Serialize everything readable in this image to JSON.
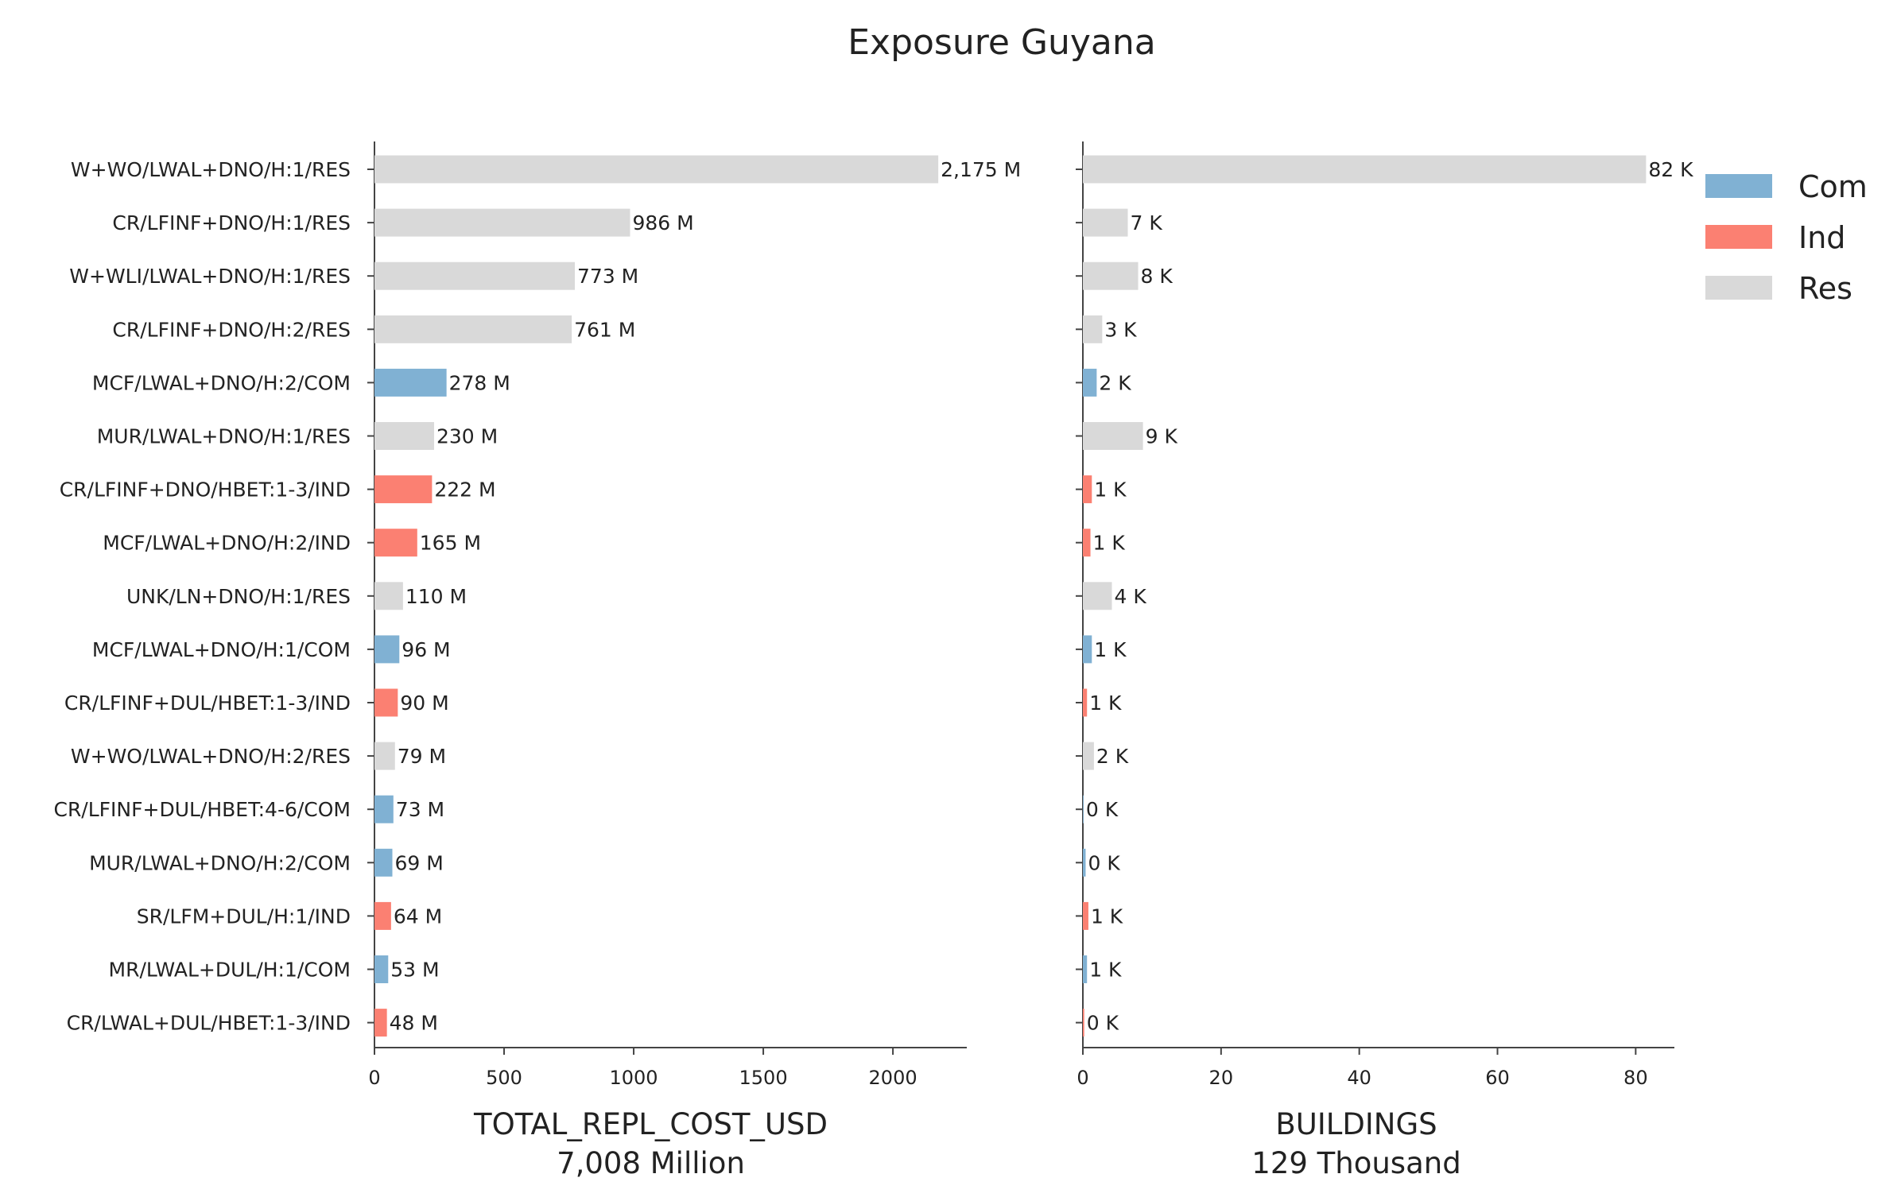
{
  "title": "Exposure Guyana",
  "chart_data": {
    "type": "bar",
    "orientation": "horizontal",
    "title": "Exposure Guyana",
    "categories": [
      "W+WO/LWAL+DNO/H:1/RES",
      "CR/LFINF+DNO/H:1/RES",
      "W+WLI/LWAL+DNO/H:1/RES",
      "CR/LFINF+DNO/H:2/RES",
      "MCF/LWAL+DNO/H:2/COM",
      "MUR/LWAL+DNO/H:1/RES",
      "CR/LFINF+DNO/HBET:1-3/IND",
      "MCF/LWAL+DNO/H:2/IND",
      "UNK/LN+DNO/H:1/RES",
      "MCF/LWAL+DNO/H:1/COM",
      "CR/LFINF+DUL/HBET:1-3/IND",
      "W+WO/LWAL+DNO/H:2/RES",
      "CR/LFINF+DUL/HBET:4-6/COM",
      "MUR/LWAL+DNO/H:2/COM",
      "SR/LFM+DUL/H:1/IND",
      "MR/LWAL+DUL/H:1/COM",
      "CR/LWAL+DUL/HBET:1-3/IND"
    ],
    "occupancy": [
      "Res",
      "Res",
      "Res",
      "Res",
      "Com",
      "Res",
      "Ind",
      "Ind",
      "Res",
      "Com",
      "Ind",
      "Res",
      "Com",
      "Com",
      "Ind",
      "Com",
      "Ind"
    ],
    "legend": {
      "position": "right",
      "entries": [
        {
          "name": "Com",
          "color": "#80b1d3"
        },
        {
          "name": "Ind",
          "color": "#fb8072"
        },
        {
          "name": "Res",
          "color": "#d9d9d9"
        }
      ]
    },
    "panels": [
      {
        "xlabel": "TOTAL_REPL_COST_USD",
        "xlabel_sub": "7,008 Million",
        "xlim": [
          0,
          2285
        ],
        "xticks": [
          0,
          500,
          1000,
          1500,
          2000
        ],
        "xtick_labels": [
          "0",
          "500",
          "1000",
          "1500",
          "2000"
        ],
        "values": [
          2175,
          986,
          773,
          761,
          278,
          230,
          222,
          165,
          110,
          96,
          90,
          79,
          73,
          69,
          64,
          53,
          48
        ],
        "value_labels": [
          "2,175 M",
          "986 M",
          "773 M",
          "761 M",
          "278 M",
          "230 M",
          "222 M",
          "165 M",
          "110 M",
          "96 M",
          "90 M",
          "79 M",
          "73 M",
          "69 M",
          "64 M",
          "53 M",
          "48 M"
        ]
      },
      {
        "xlabel": "BUILDINGS",
        "xlabel_sub": "129 Thousand",
        "xlim": [
          0,
          85.6
        ],
        "xticks": [
          0,
          20,
          40,
          60,
          80
        ],
        "xtick_labels": [
          "0",
          "20",
          "40",
          "60",
          "80"
        ],
        "values": [
          81.5,
          6.5,
          8.0,
          2.8,
          2.0,
          8.7,
          1.3,
          1.1,
          4.2,
          1.3,
          0.6,
          1.6,
          0.1,
          0.4,
          0.8,
          0.6,
          0.2
        ],
        "value_labels": [
          "82 K",
          "7 K",
          "8 K",
          "3 K",
          "2 K",
          "9 K",
          "1 K",
          "1 K",
          "4 K",
          "1 K",
          "1 K",
          "2 K",
          "0 K",
          "0 K",
          "1 K",
          "1 K",
          "0 K"
        ]
      }
    ],
    "grid": false
  }
}
